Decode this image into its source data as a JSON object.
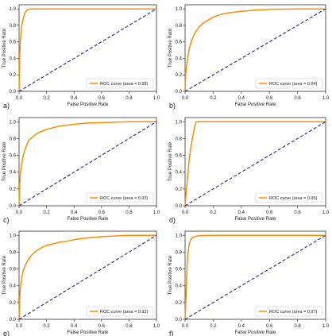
{
  "chart_data": [
    {
      "type": "line",
      "panel_label": "a)",
      "xlabel": "False Positive Rate",
      "ylabel": "True Positive Rate",
      "xlim": [
        0,
        1
      ],
      "ylim": [
        0,
        1.05
      ],
      "xticks": [
        "0.0",
        "0.2",
        "0.4",
        "0.6",
        "0.8",
        "1.0"
      ],
      "yticks": [
        "0.0",
        "0.2",
        "0.4",
        "0.6",
        "0.8",
        "1.0"
      ],
      "legend_label": "ROC curve (area = 0.98)",
      "legend_position": "lower-right",
      "grid": false,
      "series": [
        {
          "name": "ROC curve (area = 0.98)",
          "color": "#ff8c00",
          "x": [
            0,
            0.005,
            0.01,
            0.015,
            0.02,
            0.03,
            0.04,
            0.05,
            0.06,
            0.08,
            0.1,
            1.0
          ],
          "y": [
            0,
            0.45,
            0.62,
            0.72,
            0.8,
            0.88,
            0.94,
            0.97,
            0.99,
            1.0,
            1.0,
            1.0
          ]
        },
        {
          "name": "",
          "style": "dashed",
          "color": "#1f1f9e",
          "x": [
            0,
            1
          ],
          "y": [
            0,
            1
          ]
        }
      ]
    },
    {
      "type": "line",
      "panel_label": "b)",
      "xlabel": "False Positive Rate",
      "ylabel": "True Positive Rate",
      "xlim": [
        0,
        1
      ],
      "ylim": [
        0,
        1.05
      ],
      "xticks": [
        "0.0",
        "0.2",
        "0.4",
        "0.6",
        "0.8",
        "1.0"
      ],
      "yticks": [
        "0.0",
        "0.2",
        "0.4",
        "0.6",
        "0.8",
        "1.0"
      ],
      "legend_label": "ROC curve (area = 0.94)",
      "legend_position": "lower-right",
      "grid": false,
      "series": [
        {
          "name": "ROC curve (area = 0.94)",
          "color": "#ff8c00",
          "x": [
            0,
            0.005,
            0.01,
            0.02,
            0.03,
            0.05,
            0.07,
            0.1,
            0.13,
            0.17,
            0.2,
            0.25,
            0.3,
            0.4,
            0.5,
            0.6,
            0.8,
            1.0
          ],
          "y": [
            0,
            0.22,
            0.3,
            0.42,
            0.52,
            0.63,
            0.71,
            0.78,
            0.83,
            0.87,
            0.9,
            0.93,
            0.95,
            0.97,
            0.985,
            0.995,
            1.0,
            1.0
          ]
        },
        {
          "name": "",
          "style": "dashed",
          "color": "#1f1f9e",
          "x": [
            0,
            1
          ],
          "y": [
            0,
            1
          ]
        }
      ]
    },
    {
      "type": "line",
      "panel_label": "c)",
      "xlabel": "False Positive Rate",
      "ylabel": "True Positive Rate",
      "xlim": [
        0,
        1
      ],
      "ylim": [
        0,
        1.05
      ],
      "xticks": [
        "0.0",
        "0.2",
        "0.4",
        "0.6",
        "0.8",
        "1.0"
      ],
      "yticks": [
        "0.0",
        "0.2",
        "0.4",
        "0.6",
        "0.8",
        "1.0"
      ],
      "legend_label": "ROC curve (area = 0.93)",
      "legend_position": "lower-right",
      "grid": false,
      "series": [
        {
          "name": "ROC curve (area = 0.93)",
          "color": "#ff8c00",
          "x": [
            0,
            0.005,
            0.01,
            0.02,
            0.03,
            0.05,
            0.07,
            0.1,
            0.13,
            0.17,
            0.2,
            0.25,
            0.3,
            0.4,
            0.5,
            0.6,
            0.8,
            1.0
          ],
          "y": [
            0,
            0.25,
            0.38,
            0.5,
            0.6,
            0.7,
            0.78,
            0.82,
            0.86,
            0.89,
            0.91,
            0.93,
            0.95,
            0.97,
            0.985,
            0.99,
            1.0,
            1.0
          ]
        },
        {
          "name": "",
          "style": "dashed",
          "color": "#1f1f9e",
          "x": [
            0,
            1
          ],
          "y": [
            0,
            1
          ]
        }
      ]
    },
    {
      "type": "line",
      "panel_label": "d)",
      "xlabel": "False Positive Rate",
      "ylabel": "True Positive Rate",
      "xlim": [
        0,
        1
      ],
      "ylim": [
        0,
        1.05
      ],
      "xticks": [
        "0.0",
        "0.2",
        "0.4",
        "0.6",
        "0.8",
        "1.0"
      ],
      "yticks": [
        "0.0",
        "0.2",
        "0.4",
        "0.6",
        "0.8",
        "1.0"
      ],
      "legend_label": "ROC curve (area = 0.96)",
      "legend_position": "lower-right",
      "grid": false,
      "series": [
        {
          "name": "ROC curve (area = 0.96)",
          "color": "#ff8c00",
          "x": [
            0,
            0.005,
            0.01,
            0.02,
            0.03,
            0.04,
            0.05,
            0.06,
            0.07,
            0.08,
            0.09,
            1.0
          ],
          "y": [
            0,
            0.1,
            0.2,
            0.38,
            0.55,
            0.68,
            0.78,
            0.87,
            0.95,
            1.0,
            1.0,
            1.0
          ]
        },
        {
          "name": "",
          "style": "dashed",
          "color": "#1f1f9e",
          "x": [
            0,
            1
          ],
          "y": [
            0,
            1
          ]
        }
      ]
    },
    {
      "type": "line",
      "panel_label": "e)",
      "xlabel": "False Positive Rate",
      "ylabel": "True Positive Rate",
      "xlim": [
        0,
        1
      ],
      "ylim": [
        0,
        1.05
      ],
      "xticks": [
        "0.0",
        "0.2",
        "0.4",
        "0.6",
        "0.8",
        "1.0"
      ],
      "yticks": [
        "0.0",
        "0.2",
        "0.4",
        "0.6",
        "0.8",
        "1.0"
      ],
      "legend_label": "ROC curve (area = 0.92)",
      "legend_position": "lower-right",
      "grid": false,
      "series": [
        {
          "name": "ROC curve (area = 0.92)",
          "color": "#ff8c00",
          "x": [
            0,
            0.005,
            0.01,
            0.02,
            0.03,
            0.05,
            0.07,
            0.1,
            0.13,
            0.17,
            0.2,
            0.25,
            0.3,
            0.35,
            0.4,
            0.5,
            0.6,
            0.8,
            1.0
          ],
          "y": [
            0,
            0.25,
            0.38,
            0.5,
            0.58,
            0.66,
            0.72,
            0.78,
            0.82,
            0.86,
            0.88,
            0.9,
            0.92,
            0.93,
            0.95,
            0.97,
            0.985,
            1.0,
            1.0
          ]
        },
        {
          "name": "",
          "style": "dashed",
          "color": "#1f1f9e",
          "x": [
            0,
            1
          ],
          "y": [
            0,
            1
          ]
        }
      ]
    },
    {
      "type": "line",
      "panel_label": "f)",
      "xlabel": "False Positive Rate",
      "ylabel": "True Positive Rate",
      "xlim": [
        0,
        1
      ],
      "ylim": [
        0,
        1.05
      ],
      "xticks": [
        "0.0",
        "0.2",
        "0.4",
        "0.6",
        "0.8",
        "1.0"
      ],
      "yticks": [
        "0.0",
        "0.2",
        "0.4",
        "0.6",
        "0.8",
        "1.0"
      ],
      "legend_label": "ROC curve (area = 0.97)",
      "legend_position": "lower-right",
      "grid": false,
      "series": [
        {
          "name": "ROC curve (area = 0.97)",
          "color": "#ff8c00",
          "x": [
            0,
            0.005,
            0.01,
            0.015,
            0.02,
            0.03,
            0.04,
            0.05,
            0.06,
            0.08,
            0.1,
            0.15,
            1.0
          ],
          "y": [
            0,
            0.2,
            0.45,
            0.65,
            0.78,
            0.9,
            0.95,
            0.97,
            0.98,
            0.99,
            0.995,
            1.0,
            1.0
          ]
        },
        {
          "name": "",
          "style": "dashed",
          "color": "#1f1f9e",
          "x": [
            0,
            1
          ],
          "y": [
            0,
            1
          ]
        }
      ]
    }
  ]
}
